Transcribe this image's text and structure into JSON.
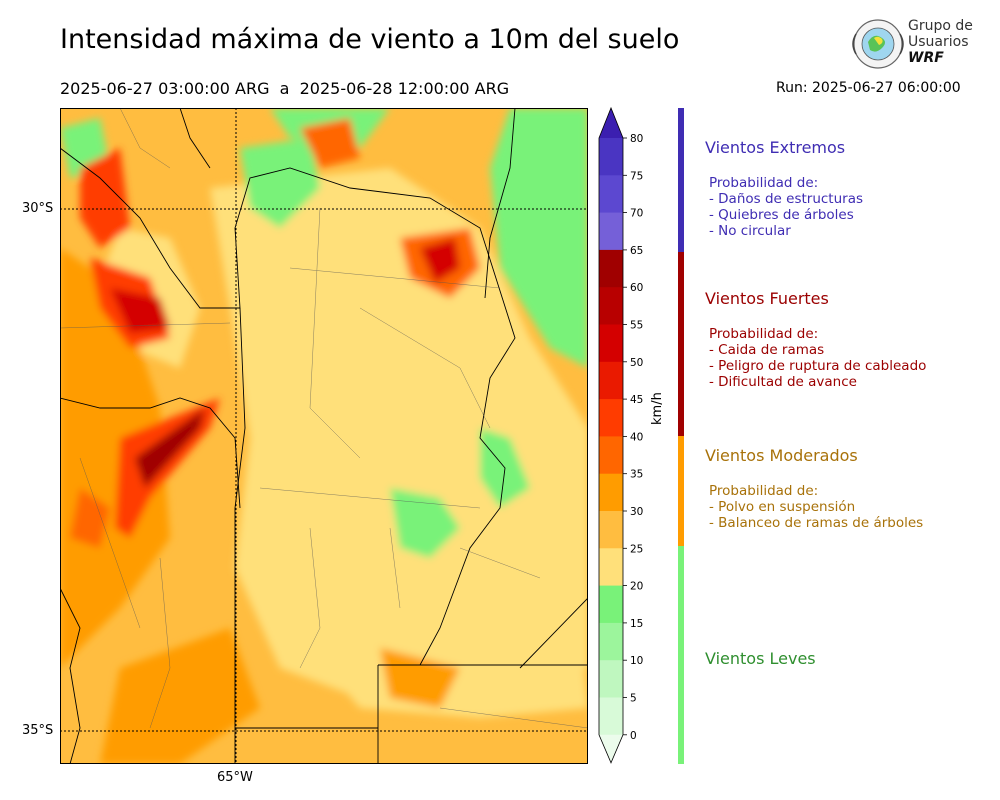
{
  "header": {
    "title": "Intensidad máxima de viento a 10m del suelo",
    "period": "2025-06-27 03:00:00 ARG  a  2025-06-28 12:00:00 ARG",
    "run": "Run: 2025-06-27 06:00:00"
  },
  "logo": {
    "line1": "Grupo de",
    "line2": "Usuarios",
    "line3": "WRF"
  },
  "map": {
    "lat_labels": [
      "30°S",
      "35°S"
    ],
    "lon_labels": [
      "65°W"
    ]
  },
  "colorbar": {
    "unit": "km/h",
    "ticks": [
      "80",
      "75",
      "70",
      "65",
      "60",
      "55",
      "50",
      "45",
      "40",
      "35",
      "30",
      "25",
      "20",
      "15",
      "10",
      "5",
      "0"
    ],
    "colors": [
      "#3b1fb0",
      "#4a35c2",
      "#5c48d0",
      "#7560d8",
      "#a00000",
      "#b80000",
      "#d40000",
      "#ea1a00",
      "#ff3c00",
      "#ff6600",
      "#ff9c00",
      "#ffbd40",
      "#ffe07a",
      "#79f279",
      "#9cf59c",
      "#bff7bf",
      "#d8fad8",
      "#ecfcec"
    ]
  },
  "categories": [
    {
      "title": "Vientos Extremos",
      "color": "#3f2db3",
      "lines": [
        "Probabilidad de:",
        "- Daños de estructuras",
        "- Quiebres de árboles",
        "- No circular"
      ]
    },
    {
      "title": "Vientos Fuertes",
      "color": "#9b0000",
      "lines": [
        "Probabilidad de:",
        "- Caida de ramas",
        "- Peligro de ruptura de cableado",
        "- Dificultad de avance"
      ]
    },
    {
      "title": "Vientos Moderados",
      "color": "#a8720a",
      "lines": [
        "Probabilidad de:",
        "- Polvo en suspensión",
        "- Balanceo de ramas de árboles"
      ]
    },
    {
      "title": "Vientos Leves",
      "color": "#2f8f2f",
      "lines": []
    }
  ],
  "category_bar_colors": [
    "#3f2db3",
    "#a00000",
    "#ff9c00",
    "#79f279"
  ]
}
